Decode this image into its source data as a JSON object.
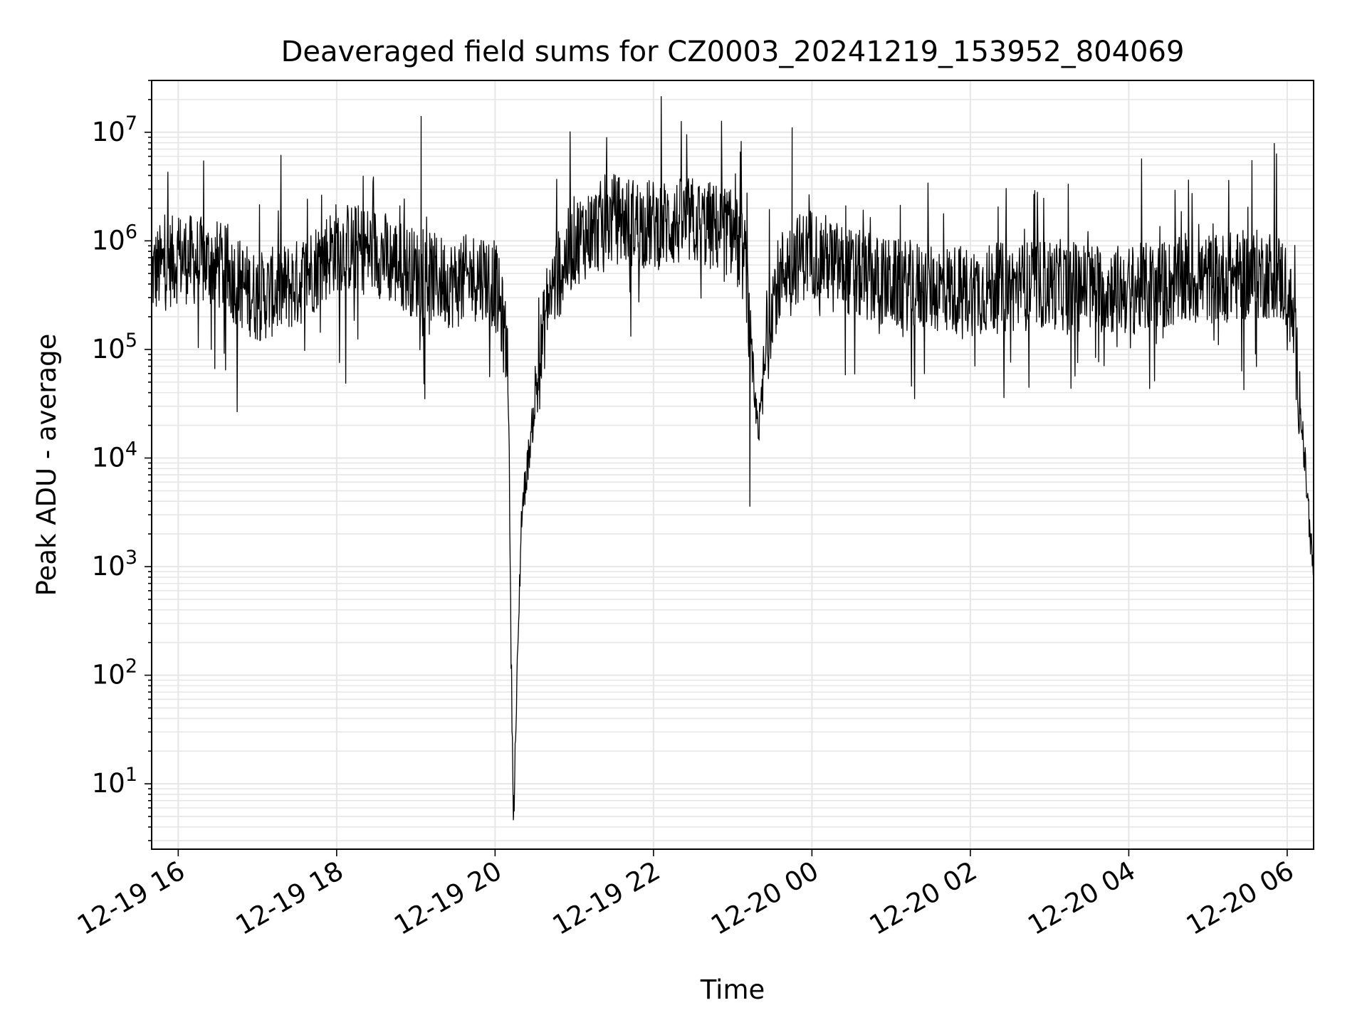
{
  "chart_data": {
    "type": "line",
    "title": "Deaveraged field sums for CZ0003_20241219_153952_804069",
    "xlabel": "Time",
    "ylabel": "Peak ADU - average",
    "yscale": "log",
    "grid": true,
    "x_ticks": [
      "12-19 16",
      "12-19 18",
      "12-19 20",
      "12-19 22",
      "12-20 00",
      "12-20 02",
      "12-20 04",
      "12-20 06"
    ],
    "y_ticks": [
      {
        "base": "10",
        "exp": "1"
      },
      {
        "base": "10",
        "exp": "2"
      },
      {
        "base": "10",
        "exp": "3"
      },
      {
        "base": "10",
        "exp": "4"
      },
      {
        "base": "10",
        "exp": "5"
      },
      {
        "base": "10",
        "exp": "6"
      },
      {
        "base": "10",
        "exp": "7"
      }
    ],
    "xlim": [
      "2024-12-19 15:39:52",
      "2024-12-20 06:20:00"
    ],
    "ylim": [
      2.5,
      30000000
    ],
    "line_color": "#000000",
    "grid_color": "#e6e6e6",
    "series_envelope": {
      "x": [
        "2024-12-19 15:40",
        "2024-12-19 16:00",
        "2024-12-19 16:30",
        "2024-12-19 17:00",
        "2024-12-19 17:30",
        "2024-12-19 18:00",
        "2024-12-19 18:30",
        "2024-12-19 19:00",
        "2024-12-19 19:30",
        "2024-12-19 19:50",
        "2024-12-19 20:00",
        "2024-12-19 20:05",
        "2024-12-19 20:10",
        "2024-12-19 20:12",
        "2024-12-19 20:14",
        "2024-12-19 20:20",
        "2024-12-19 20:30",
        "2024-12-19 20:40",
        "2024-12-19 21:00",
        "2024-12-19 21:30",
        "2024-12-19 22:00",
        "2024-12-19 22:30",
        "2024-12-19 23:00",
        "2024-12-19 23:10",
        "2024-12-19 23:15",
        "2024-12-19 23:20",
        "2024-12-19 23:30",
        "2024-12-19 23:40",
        "2024-12-20 00:00",
        "2024-12-20 00:30",
        "2024-12-20 01:00",
        "2024-12-20 02:00",
        "2024-12-20 03:00",
        "2024-12-20 04:00",
        "2024-12-20 05:00",
        "2024-12-20 05:50",
        "2024-12-20 06:00",
        "2024-12-20 06:05",
        "2024-12-20 06:10",
        "2024-12-20 06:15",
        "2024-12-20 06:20"
      ],
      "typical": [
        500000,
        700000,
        600000,
        300000,
        400000,
        900000,
        800000,
        500000,
        400000,
        500000,
        400000,
        200000,
        80000,
        200,
        5,
        3000,
        30000,
        300000,
        1000000,
        1600000,
        1400000,
        1500000,
        1200000,
        600000,
        40000,
        20000,
        300000,
        600000,
        800000,
        500000,
        400000,
        350000,
        400000,
        350000,
        450000,
        500000,
        400000,
        150000,
        30000,
        5000,
        800
      ]
    },
    "notable_extremes": [
      {
        "x": "2024-12-19 19:04",
        "y": 14000000
      },
      {
        "x": "2024-12-19 20:14",
        "y": 5
      },
      {
        "x": "2024-12-19 23:13",
        "y": 3600
      },
      {
        "x": "2024-12-19 23:45",
        "y": 11000000
      }
    ]
  }
}
